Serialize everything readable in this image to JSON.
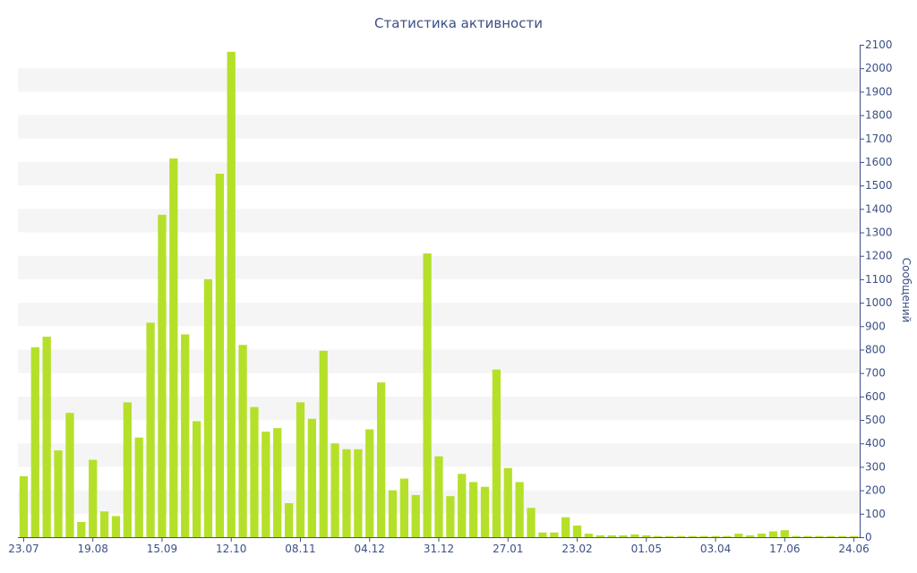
{
  "chart_data": {
    "type": "bar",
    "title": "Статистика активности",
    "xlabel": "",
    "ylabel": "Сообщений",
    "ylim": [
      0,
      2100
    ],
    "yticks": [
      0,
      100,
      200,
      300,
      400,
      500,
      600,
      700,
      800,
      900,
      1000,
      1100,
      1200,
      1300,
      1400,
      1500,
      1600,
      1700,
      1800,
      1900,
      2000,
      2100
    ],
    "x_tick_labels": [
      {
        "label": "23.07",
        "index": 0
      },
      {
        "label": "19.08",
        "index": 6
      },
      {
        "label": "15.09",
        "index": 12
      },
      {
        "label": "12.10",
        "index": 18
      },
      {
        "label": "08.11",
        "index": 24
      },
      {
        "label": "04.12",
        "index": 30
      },
      {
        "label": "31.12",
        "index": 36
      },
      {
        "label": "27.01",
        "index": 42
      },
      {
        "label": "23.02",
        "index": 48
      },
      {
        "label": "01.05",
        "index": 54
      },
      {
        "label": "03.04",
        "index": 60
      },
      {
        "label": "17.06",
        "index": 66
      },
      {
        "label": "24.06",
        "index": 72
      }
    ],
    "values": [
      260,
      810,
      855,
      370,
      530,
      65,
      330,
      110,
      90,
      575,
      425,
      915,
      1375,
      1615,
      865,
      495,
      1100,
      1550,
      2070,
      820,
      555,
      450,
      465,
      145,
      575,
      505,
      795,
      400,
      375,
      375,
      460,
      660,
      200,
      250,
      180,
      1210,
      345,
      175,
      270,
      235,
      215,
      715,
      295,
      235,
      125,
      20,
      20,
      85,
      50,
      15,
      8,
      8,
      8,
      12,
      8,
      5,
      5,
      5,
      5,
      5,
      5,
      5,
      15,
      8,
      15,
      25,
      30,
      5,
      5,
      5,
      5,
      5,
      5
    ],
    "colors": {
      "bar": "#b5e02a",
      "text": "#3b4f86",
      "band": "#f5f5f5"
    },
    "grid": "alternating-bands",
    "y_axis_position": "right",
    "legend": "none"
  }
}
